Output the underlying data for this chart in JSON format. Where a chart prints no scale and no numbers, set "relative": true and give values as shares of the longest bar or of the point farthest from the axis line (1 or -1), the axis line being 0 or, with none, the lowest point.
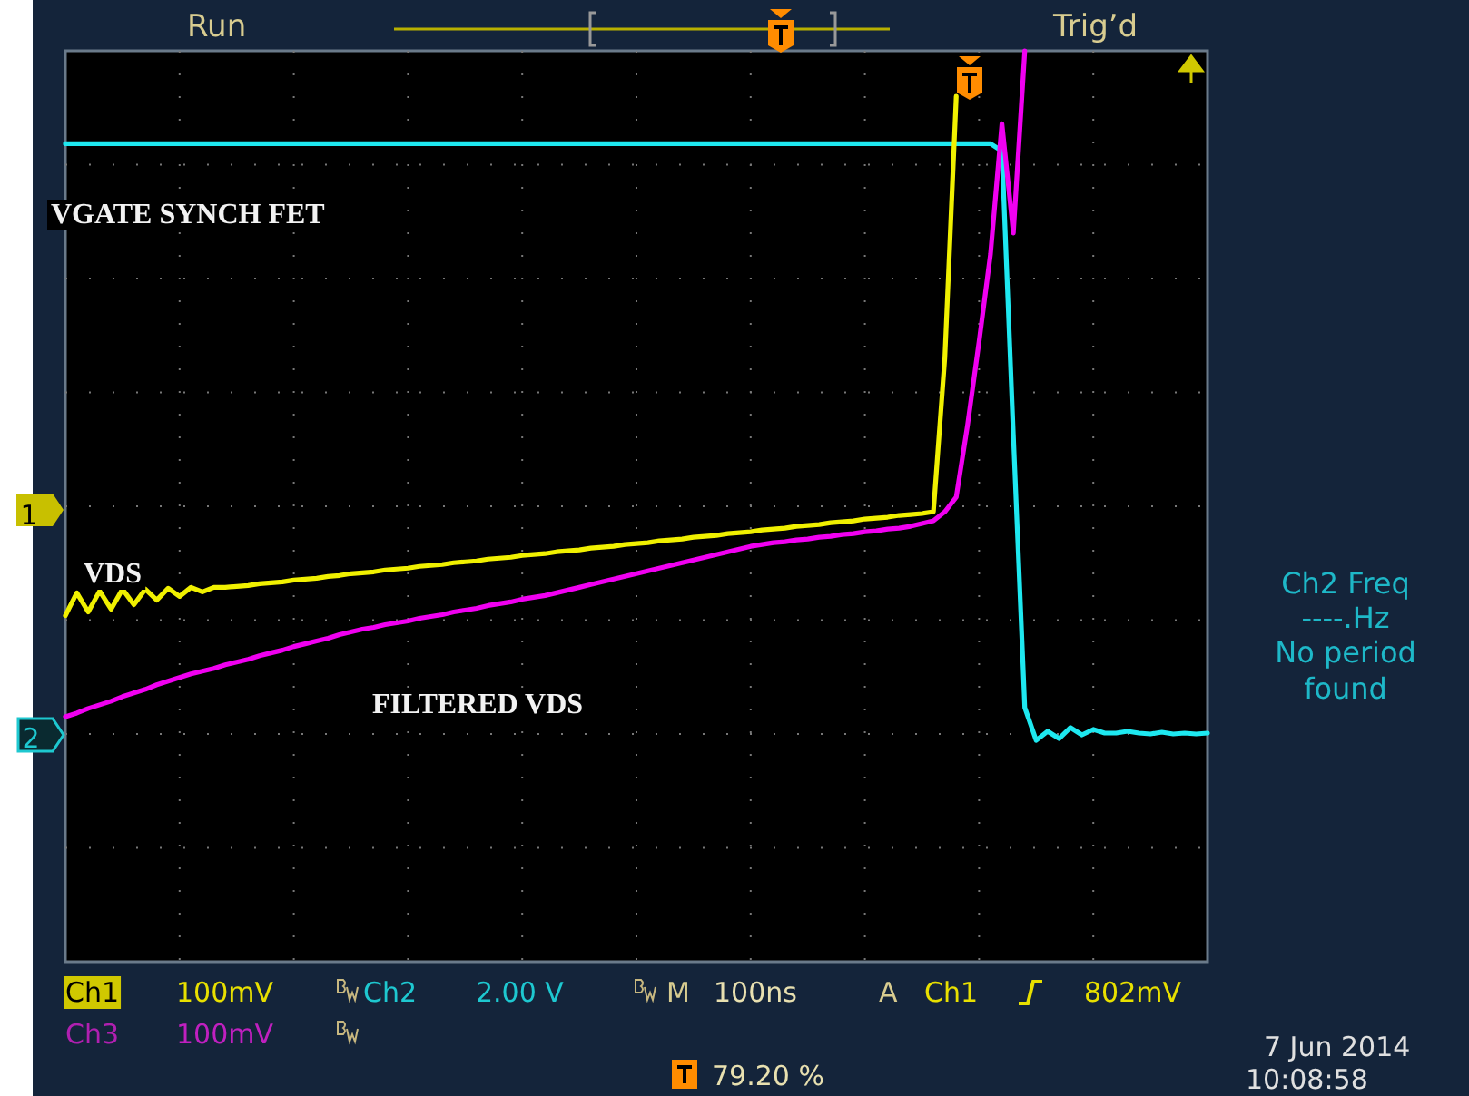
{
  "chart_data": {
    "type": "line",
    "relative": true,
    "grid": true,
    "categories": [
      null,
      null,
      null,
      null,
      null,
      null,
      null,
      null,
      null,
      null,
      null,
      null,
      null,
      null,
      null,
      null,
      null,
      null,
      null,
      null,
      null,
      null,
      null,
      null,
      null,
      null,
      null,
      null,
      null,
      null,
      null,
      null,
      null,
      null,
      null,
      null,
      null,
      null,
      null,
      null,
      null,
      null,
      null,
      null,
      null,
      null,
      null,
      null,
      null,
      null,
      null,
      null,
      null,
      null,
      null,
      null,
      null,
      null,
      null,
      null,
      null,
      null,
      null,
      null,
      null,
      null,
      null,
      null,
      null,
      null,
      null,
      null,
      null,
      null,
      null,
      null,
      null,
      null,
      null,
      null,
      null,
      null,
      null,
      null,
      null,
      null,
      null,
      null,
      null,
      null,
      null,
      null,
      null,
      null,
      null,
      null,
      null,
      null,
      null,
      null,
      null
    ],
    "series": [
      {
        "name": "VGATE SYNCH FET",
        "color": "#1ee8f0",
        "values": [
          0.898,
          0.898,
          0.898,
          0.898,
          0.898,
          0.898,
          0.898,
          0.898,
          0.898,
          0.898,
          0.898,
          0.898,
          0.898,
          0.898,
          0.898,
          0.898,
          0.898,
          0.898,
          0.898,
          0.898,
          0.898,
          0.898,
          0.898,
          0.898,
          0.898,
          0.898,
          0.898,
          0.898,
          0.898,
          0.898,
          0.898,
          0.898,
          0.898,
          0.898,
          0.898,
          0.898,
          0.898,
          0.898,
          0.898,
          0.898,
          0.898,
          0.898,
          0.898,
          0.898,
          0.898,
          0.898,
          0.898,
          0.898,
          0.898,
          0.898,
          0.898,
          0.898,
          0.898,
          0.898,
          0.898,
          0.898,
          0.898,
          0.898,
          0.898,
          0.898,
          0.898,
          0.898,
          0.898,
          0.898,
          0.898,
          0.898,
          0.898,
          0.898,
          0.898,
          0.898,
          0.898,
          0.898,
          0.898,
          0.898,
          0.898,
          0.898,
          0.898,
          0.898,
          0.898,
          0.898,
          0.898,
          0.898,
          0.89,
          0.578,
          0.279,
          0.243,
          0.253,
          0.245,
          0.257,
          0.249,
          0.255,
          0.251,
          0.251,
          0.253,
          0.251,
          0.25,
          0.252,
          0.25,
          0.251,
          0.25,
          0.251
        ]
      },
      {
        "name": "VDS",
        "color": "#f0f000",
        "values": [
          0.38,
          0.405,
          0.384,
          0.407,
          0.387,
          0.409,
          0.392,
          0.409,
          0.397,
          0.41,
          0.401,
          0.411,
          0.406,
          0.411,
          0.411,
          0.412,
          0.413,
          0.415,
          0.416,
          0.417,
          0.419,
          0.42,
          0.421,
          0.423,
          0.424,
          0.426,
          0.427,
          0.428,
          0.43,
          0.431,
          0.432,
          0.434,
          0.435,
          0.436,
          0.438,
          0.439,
          0.44,
          0.442,
          0.443,
          0.444,
          0.446,
          0.447,
          0.448,
          0.45,
          0.451,
          0.452,
          0.454,
          0.455,
          0.456,
          0.458,
          0.459,
          0.46,
          0.462,
          0.463,
          0.464,
          0.466,
          0.467,
          0.468,
          0.47,
          0.471,
          0.472,
          0.474,
          0.475,
          0.476,
          0.478,
          0.479,
          0.48,
          0.482,
          0.483,
          0.484,
          0.486,
          0.487,
          0.488,
          0.49,
          0.491,
          0.492,
          0.494,
          0.663,
          0.95,
          null,
          null,
          null,
          null,
          null,
          null,
          null,
          null,
          null,
          null,
          null,
          null,
          null,
          null,
          null,
          null,
          null,
          null,
          null,
          null,
          null,
          null
        ]
      },
      {
        "name": "FILTERED VDS",
        "color": "#f000f0",
        "values": [
          0.269,
          0.273,
          0.278,
          0.282,
          0.286,
          0.291,
          0.295,
          0.299,
          0.304,
          0.308,
          0.312,
          0.316,
          0.319,
          0.322,
          0.326,
          0.329,
          0.332,
          0.336,
          0.339,
          0.342,
          0.346,
          0.349,
          0.352,
          0.355,
          0.359,
          0.362,
          0.365,
          0.367,
          0.37,
          0.372,
          0.374,
          0.377,
          0.379,
          0.381,
          0.384,
          0.386,
          0.388,
          0.391,
          0.393,
          0.395,
          0.398,
          0.4,
          0.402,
          0.405,
          0.408,
          0.411,
          0.414,
          0.417,
          0.42,
          0.423,
          0.426,
          0.429,
          0.432,
          0.435,
          0.438,
          0.441,
          0.444,
          0.447,
          0.45,
          0.453,
          0.456,
          0.458,
          0.46,
          0.461,
          0.463,
          0.464,
          0.466,
          0.467,
          0.469,
          0.47,
          0.472,
          0.473,
          0.475,
          0.476,
          0.478,
          0.481,
          0.484,
          0.494,
          0.51,
          0.59,
          0.681,
          0.777,
          0.92,
          0.8,
          1,
          null,
          null,
          null,
          null,
          null,
          null,
          null,
          null,
          null,
          null,
          null,
          null,
          null,
          null,
          null,
          null
        ]
      }
    ],
    "annotations": [
      "Run",
      "Trig’d",
      "Ch1",
      "100mV",
      "Ch2",
      "2.00 V",
      "M",
      "100ns",
      "A",
      "Ch1",
      "802mV",
      "Ch3",
      "100mV",
      "79.20 %",
      "7 Jun  2014",
      "10:08:58",
      "Ch2 Freq",
      "----.Hz",
      "No period",
      "found",
      "1",
      "2"
    ]
  }
}
